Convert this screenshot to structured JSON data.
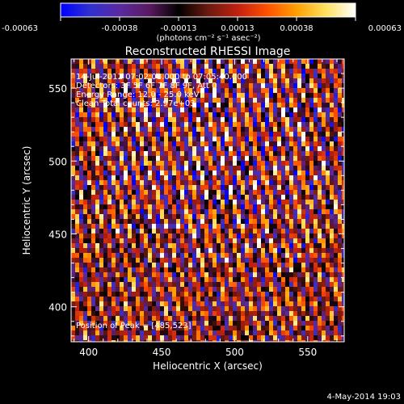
{
  "chart_data": {
    "type": "heatmap",
    "title": "Reconstructed RHESSI Image",
    "xlabel": "Heliocentric X (arcsec)",
    "ylabel": "Heliocentric Y (arcsec)",
    "xlim": [
      388,
      575
    ],
    "ylim": [
      376,
      570
    ],
    "x_ticks": [
      400,
      450,
      500,
      550
    ],
    "y_ticks": [
      400,
      450,
      500,
      550
    ],
    "colorbar": {
      "ticks": [
        "-0.00063",
        "-0.00038",
        "-0.00013",
        "0.00013",
        "0.00038",
        "0.00063"
      ],
      "range": [
        -0.00063,
        0.00063
      ],
      "unit_label": "(photons cm⁻² s⁻¹ asec⁻²)",
      "colors": [
        "#0000ff",
        "#3030d0",
        "#5a2aa0",
        "#5a1a60",
        "#000000",
        "#6a1a10",
        "#c02010",
        "#ff5000",
        "#ffa000",
        "#ffe060",
        "#ffffff"
      ]
    },
    "annotations": [
      "14-Jul-2012 07:02:08.000 to 07:05:40.000",
      "Detectors: 3F 5F 6F 7F 8F 9F, Att 0",
      "Energy Range: 12.0 - 25.0 keV",
      "Clean    Total counts: 2.97e+03"
    ],
    "peak_label": "Position of Peak = [485,523]",
    "peak": [
      485,
      523
    ],
    "stripe_pattern": {
      "slope_y_per_x": -3.4,
      "period_arcsec": 8.6
    },
    "footer": "4-May-2014 19:03"
  }
}
